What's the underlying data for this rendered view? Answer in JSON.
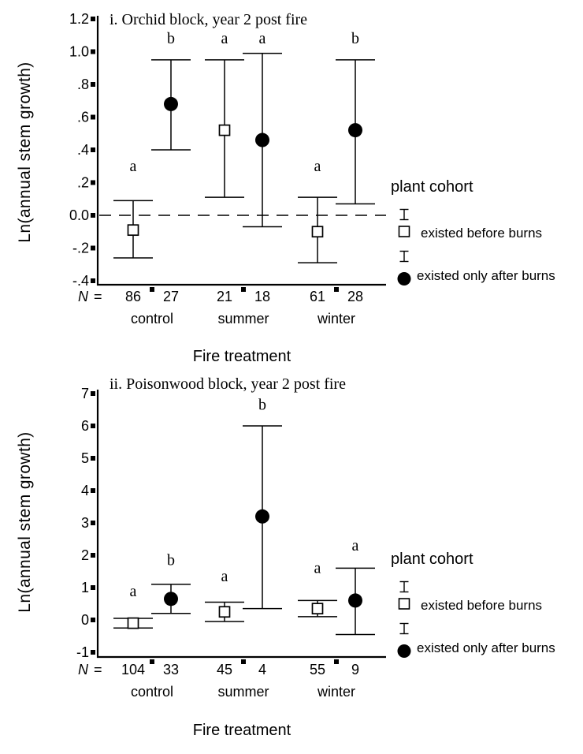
{
  "figure": {
    "background": "#ffffff",
    "ink": "#000000"
  },
  "legend": {
    "title": "plant cohort",
    "items": [
      {
        "marker": "open-square",
        "label": "existed before burns"
      },
      {
        "marker": "filled-circle",
        "label": "existed only after burns"
      }
    ]
  },
  "chart_data": [
    {
      "type": "errorbar",
      "title": "i. Orchid block, year 2 post fire",
      "xlabel": "Fire treatment",
      "ylabel": "Ln(annual stem growth)",
      "n_prefix_symbol": "N",
      "n_prefix_eq": "=",
      "categories": [
        "control",
        "summer",
        "winter"
      ],
      "ylim": [
        -0.46,
        1.23
      ],
      "yticks": [
        {
          "v": 1.2,
          "label": "1.2"
        },
        {
          "v": 1.0,
          "label": "1.0"
        },
        {
          "v": 0.8,
          "label": ".8"
        },
        {
          "v": 0.6,
          "label": ".6"
        },
        {
          "v": 0.4,
          "label": ".4"
        },
        {
          "v": 0.2,
          "label": ".2"
        },
        {
          "v": 0.0,
          "label": "0.0"
        },
        {
          "v": -0.2,
          "label": "-.2"
        },
        {
          "v": -0.4,
          "label": "-.4"
        }
      ],
      "zero_line": "dashed",
      "series": [
        {
          "name": "existed before burns",
          "marker": "open-square",
          "points": [
            {
              "category": "control",
              "value": -0.09,
              "lo": -0.26,
              "hi": 0.09,
              "letter": "a",
              "letter_v": 0.27,
              "n": "86"
            },
            {
              "category": "summer",
              "value": 0.52,
              "lo": 0.11,
              "hi": 0.95,
              "letter": "a",
              "letter_v": 1.05,
              "n": "21"
            },
            {
              "category": "winter",
              "value": -0.1,
              "lo": -0.29,
              "hi": 0.11,
              "letter": "a",
              "letter_v": 0.27,
              "n": "61"
            }
          ]
        },
        {
          "name": "existed only after burns",
          "marker": "filled-circle",
          "points": [
            {
              "category": "control",
              "value": 0.68,
              "lo": 0.4,
              "hi": 0.95,
              "letter": "b",
              "letter_v": 1.05,
              "n": "27"
            },
            {
              "category": "summer",
              "value": 0.46,
              "lo": -0.07,
              "hi": 0.99,
              "letter": "a",
              "letter_v": 1.05,
              "n": "18"
            },
            {
              "category": "winter",
              "value": 0.52,
              "lo": 0.07,
              "hi": 0.95,
              "letter": "b",
              "letter_v": 1.05,
              "n": "28"
            }
          ]
        }
      ]
    },
    {
      "type": "errorbar",
      "title": "ii. Poisonwood block, year 2 post fire",
      "xlabel": "Fire treatment",
      "ylabel": "Ln(annual stem growth)",
      "n_prefix_symbol": "N",
      "n_prefix_eq": "=",
      "categories": [
        "control",
        "summer",
        "winter"
      ],
      "ylim": [
        -1.2,
        7.2
      ],
      "yticks": [
        {
          "v": 7,
          "label": "7"
        },
        {
          "v": 6,
          "label": "6"
        },
        {
          "v": 5,
          "label": "5"
        },
        {
          "v": 4,
          "label": "4"
        },
        {
          "v": 3,
          "label": "3"
        },
        {
          "v": 2,
          "label": "2"
        },
        {
          "v": 1,
          "label": "1"
        },
        {
          "v": 0,
          "label": "0"
        },
        {
          "v": -1,
          "label": "-1"
        }
      ],
      "zero_line": "none",
      "series": [
        {
          "name": "existed before burns",
          "marker": "open-square",
          "points": [
            {
              "category": "control",
              "value": -0.1,
              "lo": -0.25,
              "hi": 0.05,
              "letter": "a",
              "letter_v": 0.73,
              "n": "104"
            },
            {
              "category": "summer",
              "value": 0.25,
              "lo": -0.05,
              "hi": 0.55,
              "letter": "a",
              "letter_v": 1.2,
              "n": "45"
            },
            {
              "category": "winter",
              "value": 0.35,
              "lo": 0.1,
              "hi": 0.6,
              "letter": "a",
              "letter_v": 1.45,
              "n": "55"
            }
          ]
        },
        {
          "name": "existed only after burns",
          "marker": "filled-circle",
          "points": [
            {
              "category": "control",
              "value": 0.65,
              "lo": 0.2,
              "hi": 1.1,
              "letter": "b",
              "letter_v": 1.7,
              "n": "33"
            },
            {
              "category": "summer",
              "value": 3.2,
              "lo": 0.35,
              "hi": 6.0,
              "letter": "b",
              "letter_v": 6.5,
              "n": "4"
            },
            {
              "category": "winter",
              "value": 0.6,
              "lo": -0.45,
              "hi": 1.6,
              "letter": "a",
              "letter_v": 2.15,
              "n": "9"
            }
          ]
        }
      ]
    }
  ]
}
